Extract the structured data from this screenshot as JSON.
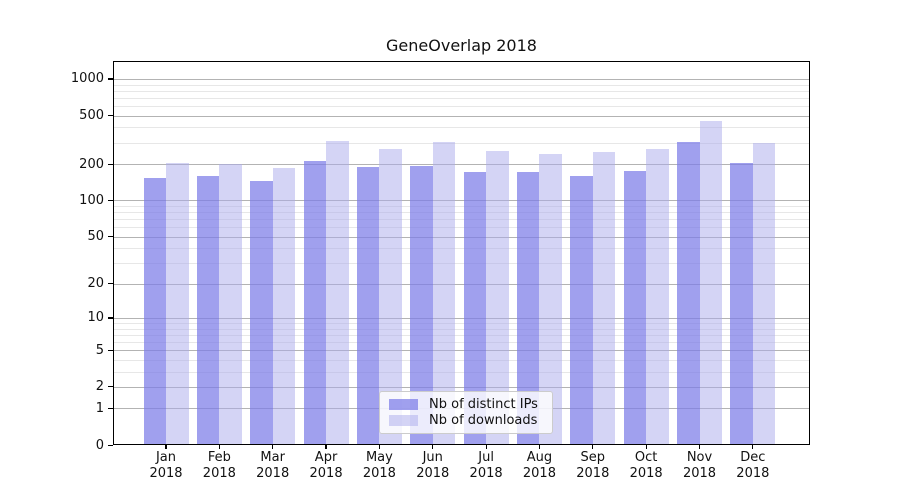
{
  "chart_data": {
    "type": "bar",
    "title": "GeneOverlap 2018",
    "categories": [
      "Jan",
      "Feb",
      "Mar",
      "Apr",
      "May",
      "Jun",
      "Jul",
      "Aug",
      "Sep",
      "Oct",
      "Nov",
      "Dec"
    ],
    "year_label": "2018",
    "series": [
      {
        "name": "Nb of distinct IPs",
        "color": "#7c7ce8",
        "fill_alpha": 0.72,
        "values": [
          152,
          160,
          146,
          211,
          188,
          194,
          171,
          172,
          160,
          176,
          301,
          203
        ]
      },
      {
        "name": "Nb of downloads",
        "color": "#aaaaec",
        "fill_alpha": 0.5,
        "values": [
          202,
          200,
          187,
          312,
          267,
          301,
          258,
          242,
          253,
          268,
          453,
          298
        ]
      }
    ],
    "yscale": "log1p",
    "ylim": [
      0,
      1400
    ],
    "yticks": [
      0,
      1,
      2,
      5,
      10,
      20,
      50,
      100,
      200,
      500,
      1000
    ],
    "grid": "both",
    "legend_position": "lower center"
  },
  "colors": {
    "background": "#ffffff",
    "axis": "#000000",
    "grid_major": "#b3b3b3",
    "grid_minor": "#e7e7e7",
    "text": "#111111",
    "legend_border": "#cccccc",
    "legend_bg": "#ffffff"
  }
}
